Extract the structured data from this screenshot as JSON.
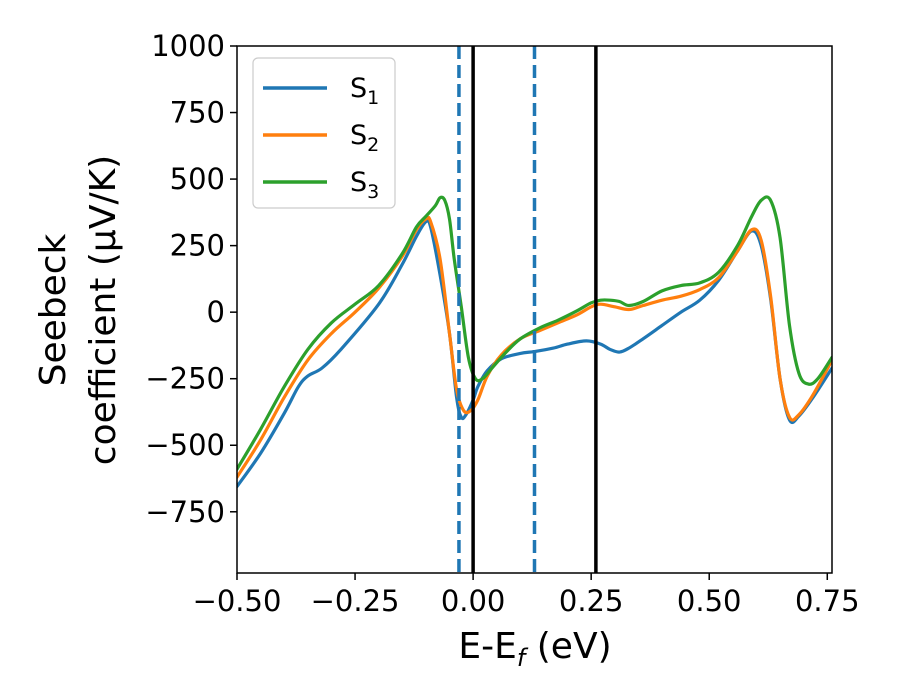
{
  "chart_data": {
    "type": "line",
    "xlabel": "E-E_f (eV)",
    "ylabel_line1": "Seebeck",
    "ylabel_line2": "coefficient  (μV/K)",
    "xlim": [
      -0.5,
      0.76
    ],
    "ylim": [
      -980,
      1000
    ],
    "xticks": [
      -0.5,
      -0.25,
      0.0,
      0.25,
      0.5,
      0.75
    ],
    "xtick_labels": [
      "−0.50",
      "−0.25",
      "0.00",
      "0.25",
      "0.50",
      "0.75"
    ],
    "yticks": [
      -750,
      -500,
      -250,
      0,
      250,
      500,
      750,
      1000
    ],
    "ytick_labels": [
      "−750",
      "−500",
      "−250",
      "0",
      "250",
      "500",
      "750",
      "1000"
    ],
    "grid": false,
    "legend_position": "top-left",
    "series": [
      {
        "name": "S",
        "subscript": "1",
        "color": "#1f77b4",
        "points": [
          [
            -0.5,
            -655
          ],
          [
            -0.45,
            -530
          ],
          [
            -0.4,
            -380
          ],
          [
            -0.37,
            -280
          ],
          [
            -0.35,
            -240
          ],
          [
            -0.32,
            -210
          ],
          [
            -0.28,
            -140
          ],
          [
            -0.2,
            30
          ],
          [
            -0.15,
            180
          ],
          [
            -0.12,
            285
          ],
          [
            -0.1,
            340
          ],
          [
            -0.09,
            320
          ],
          [
            -0.07,
            140
          ],
          [
            -0.05,
            -80
          ],
          [
            -0.035,
            -320
          ],
          [
            -0.025,
            -395
          ],
          [
            -0.015,
            -385
          ],
          [
            0.0,
            -330
          ],
          [
            0.01,
            -280
          ],
          [
            0.03,
            -220
          ],
          [
            0.06,
            -175
          ],
          [
            0.1,
            -155
          ],
          [
            0.13,
            -148
          ],
          [
            0.17,
            -135
          ],
          [
            0.2,
            -120
          ],
          [
            0.24,
            -108
          ],
          [
            0.27,
            -120
          ],
          [
            0.29,
            -140
          ],
          [
            0.31,
            -150
          ],
          [
            0.33,
            -135
          ],
          [
            0.36,
            -100
          ],
          [
            0.4,
            -50
          ],
          [
            0.44,
            0
          ],
          [
            0.48,
            45
          ],
          [
            0.52,
            120
          ],
          [
            0.56,
            230
          ],
          [
            0.59,
            305
          ],
          [
            0.61,
            250
          ],
          [
            0.63,
            50
          ],
          [
            0.65,
            -250
          ],
          [
            0.67,
            -405
          ],
          [
            0.69,
            -390
          ],
          [
            0.72,
            -320
          ],
          [
            0.76,
            -210
          ]
        ]
      },
      {
        "name": "S",
        "subscript": "2",
        "color": "#ff7f0e",
        "points": [
          [
            -0.5,
            -620
          ],
          [
            -0.45,
            -480
          ],
          [
            -0.4,
            -320
          ],
          [
            -0.35,
            -180
          ],
          [
            -0.3,
            -80
          ],
          [
            -0.25,
            0
          ],
          [
            -0.2,
            90
          ],
          [
            -0.15,
            210
          ],
          [
            -0.12,
            310
          ],
          [
            -0.1,
            350
          ],
          [
            -0.09,
            340
          ],
          [
            -0.07,
            200
          ],
          [
            -0.05,
            -80
          ],
          [
            -0.035,
            -290
          ],
          [
            -0.02,
            -370
          ],
          [
            -0.005,
            -370
          ],
          [
            0.01,
            -330
          ],
          [
            0.03,
            -240
          ],
          [
            0.06,
            -160
          ],
          [
            0.1,
            -100
          ],
          [
            0.14,
            -70
          ],
          [
            0.18,
            -40
          ],
          [
            0.22,
            -10
          ],
          [
            0.25,
            20
          ],
          [
            0.27,
            30
          ],
          [
            0.3,
            20
          ],
          [
            0.33,
            10
          ],
          [
            0.36,
            25
          ],
          [
            0.4,
            45
          ],
          [
            0.44,
            60
          ],
          [
            0.48,
            85
          ],
          [
            0.52,
            130
          ],
          [
            0.56,
            230
          ],
          [
            0.59,
            310
          ],
          [
            0.61,
            270
          ],
          [
            0.63,
            60
          ],
          [
            0.65,
            -250
          ],
          [
            0.67,
            -395
          ],
          [
            0.69,
            -385
          ],
          [
            0.72,
            -310
          ],
          [
            0.76,
            -180
          ]
        ]
      },
      {
        "name": "S",
        "subscript": "3",
        "color": "#2ca02c",
        "points": [
          [
            -0.5,
            -590
          ],
          [
            -0.45,
            -440
          ],
          [
            -0.4,
            -280
          ],
          [
            -0.35,
            -140
          ],
          [
            -0.3,
            -40
          ],
          [
            -0.25,
            30
          ],
          [
            -0.2,
            100
          ],
          [
            -0.15,
            220
          ],
          [
            -0.12,
            320
          ],
          [
            -0.1,
            360
          ],
          [
            -0.08,
            400
          ],
          [
            -0.07,
            430
          ],
          [
            -0.06,
            420
          ],
          [
            -0.05,
            350
          ],
          [
            -0.04,
            200
          ],
          [
            -0.025,
            20
          ],
          [
            -0.01,
            -170
          ],
          [
            0.005,
            -250
          ],
          [
            0.02,
            -250
          ],
          [
            0.04,
            -210
          ],
          [
            0.07,
            -150
          ],
          [
            0.1,
            -100
          ],
          [
            0.14,
            -60
          ],
          [
            0.18,
            -30
          ],
          [
            0.22,
            5
          ],
          [
            0.25,
            35
          ],
          [
            0.27,
            45
          ],
          [
            0.29,
            45
          ],
          [
            0.31,
            40
          ],
          [
            0.33,
            25
          ],
          [
            0.36,
            40
          ],
          [
            0.4,
            80
          ],
          [
            0.44,
            100
          ],
          [
            0.48,
            110
          ],
          [
            0.52,
            150
          ],
          [
            0.56,
            250
          ],
          [
            0.59,
            360
          ],
          [
            0.61,
            420
          ],
          [
            0.63,
            420
          ],
          [
            0.65,
            280
          ],
          [
            0.67,
            -50
          ],
          [
            0.69,
            -230
          ],
          [
            0.71,
            -270
          ],
          [
            0.73,
            -250
          ],
          [
            0.76,
            -170
          ]
        ]
      }
    ],
    "vlines": [
      {
        "x": -0.03,
        "style": "dashed",
        "color": "#1f77b4"
      },
      {
        "x": 0.0,
        "style": "solid",
        "color": "#000000"
      },
      {
        "x": 0.13,
        "style": "dashed",
        "color": "#1f77b4"
      },
      {
        "x": 0.26,
        "style": "solid",
        "color": "#000000"
      }
    ]
  }
}
